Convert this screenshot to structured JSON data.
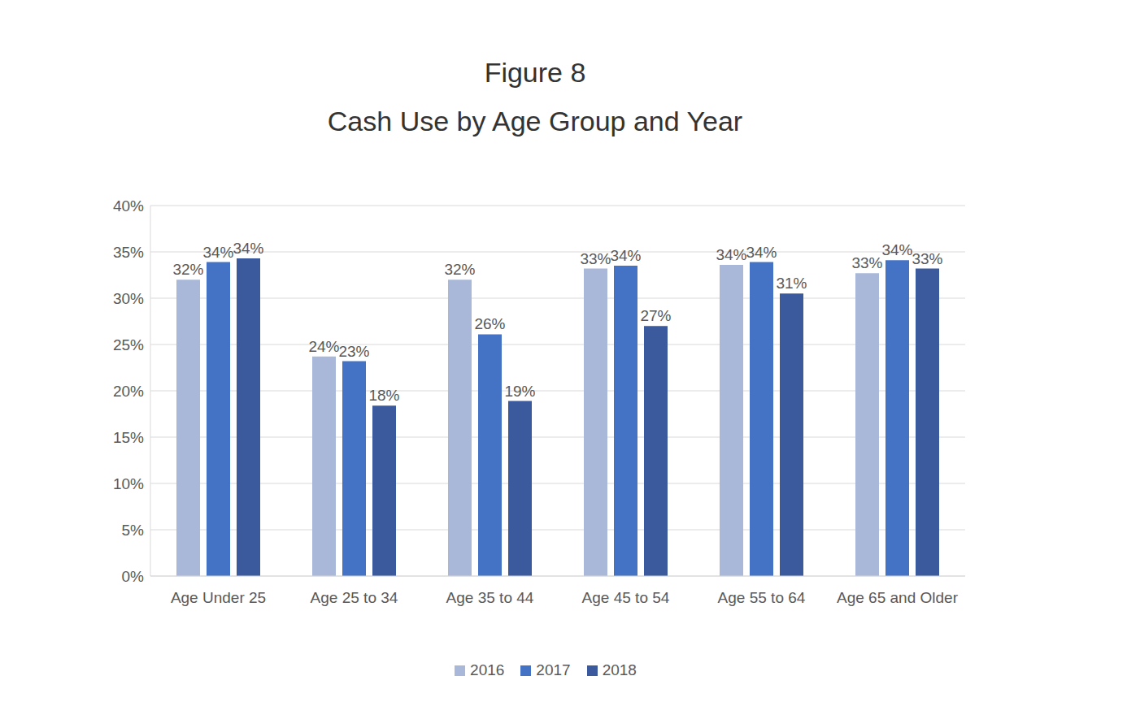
{
  "chart_data": {
    "type": "bar",
    "title": "Figure 8",
    "subtitle": "Cash Use by Age Group and Year",
    "categories": [
      "Age Under 25",
      "Age 25 to 34",
      "Age 35 to 44",
      "Age 45 to 54",
      "Age 55 to 64",
      "Age 65 and Older"
    ],
    "series": [
      {
        "name": "2016",
        "color": "#a9b7d9",
        "values": [
          32.0,
          23.7,
          32.0,
          33.2,
          33.6,
          32.7
        ],
        "value_labels": [
          "32%",
          "24%",
          "32%",
          "33%",
          "34%",
          "33%"
        ]
      },
      {
        "name": "2017",
        "color": "#4472c4",
        "values": [
          33.9,
          23.2,
          26.1,
          33.5,
          33.9,
          34.1
        ],
        "value_labels": [
          "34%",
          "23%",
          "26%",
          "34%",
          "34%",
          "34%"
        ]
      },
      {
        "name": "2018",
        "color": "#3b5a9d",
        "values": [
          34.3,
          18.4,
          18.9,
          27.0,
          30.5,
          33.2
        ],
        "value_labels": [
          "34%",
          "18%",
          "19%",
          "27%",
          "31%",
          "33%"
        ]
      }
    ],
    "ylim": [
      0,
      40
    ],
    "yticks": [
      {
        "value": 0,
        "label": "0%"
      },
      {
        "value": 5,
        "label": "5%"
      },
      {
        "value": 10,
        "label": "10%"
      },
      {
        "value": 15,
        "label": "15%"
      },
      {
        "value": 20,
        "label": "20%"
      },
      {
        "value": 25,
        "label": "25%"
      },
      {
        "value": 30,
        "label": "30%"
      },
      {
        "value": 35,
        "label": "35%"
      },
      {
        "value": 40,
        "label": "40%"
      }
    ],
    "grid": true,
    "data_labels": true,
    "legend": "bottom"
  }
}
